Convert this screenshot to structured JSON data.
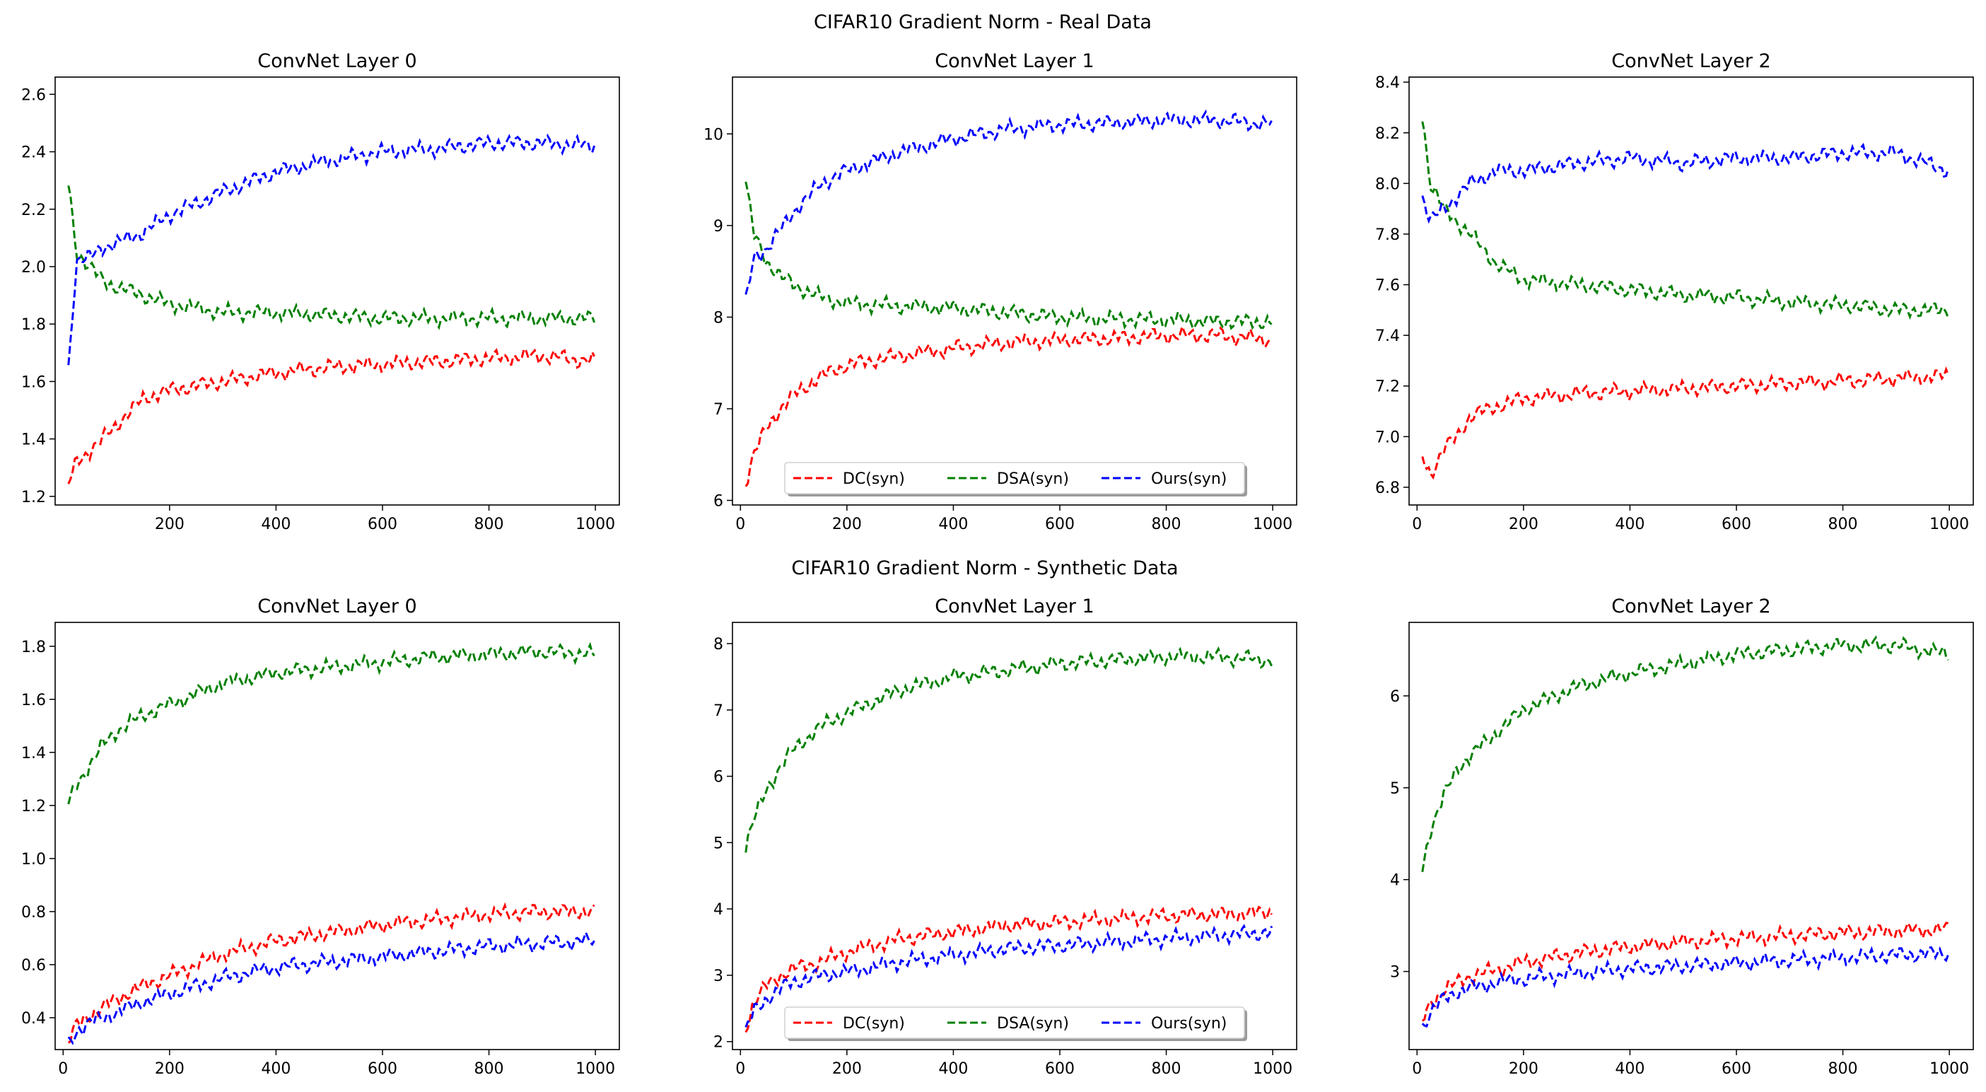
{
  "figure": {
    "real_title": "CIFAR10 Gradient Norm - Real Data",
    "syn_title": "CIFAR10 Gradient Norm - Synthetic Data"
  },
  "legend_labels": [
    "DC(syn)",
    "DSA(syn)",
    "Ours(syn)"
  ],
  "series_colors": {
    "DC(syn)": "#ff0000",
    "DSA(syn)": "#008000",
    "Ours(syn)": "#0000ff"
  },
  "chart_data": [
    {
      "type": "line",
      "group": "CIFAR10 Gradient Norm - Real Data",
      "title": "ConvNet Layer 0",
      "xlabel": "",
      "ylabel": "",
      "xlim": [
        -15,
        1045
      ],
      "ylim": [
        1.17,
        2.66
      ],
      "xticks": [
        200,
        400,
        600,
        800,
        1000
      ],
      "yticks": [
        1.2,
        1.4,
        1.6,
        1.8,
        2.0,
        2.2,
        2.4,
        2.6
      ],
      "ytick_labels": [
        "1.2",
        "1.4",
        "1.6",
        "1.8",
        "2.0",
        "2.2",
        "2.4",
        "2.6"
      ],
      "x": [
        10,
        25,
        50,
        75,
        100,
        150,
        200,
        300,
        400,
        500,
        600,
        700,
        800,
        900,
        1000
      ],
      "series": [
        {
          "name": "DC(syn)",
          "values": [
            1.24,
            1.32,
            1.36,
            1.4,
            1.45,
            1.54,
            1.57,
            1.6,
            1.63,
            1.65,
            1.66,
            1.67,
            1.68,
            1.69,
            1.67
          ]
        },
        {
          "name": "DSA(syn)",
          "values": [
            2.29,
            2.05,
            2.0,
            1.95,
            1.93,
            1.9,
            1.87,
            1.84,
            1.84,
            1.83,
            1.82,
            1.82,
            1.82,
            1.82,
            1.82
          ]
        },
        {
          "name": "Ours(syn)",
          "values": [
            1.65,
            2.02,
            2.03,
            2.07,
            2.08,
            2.12,
            2.18,
            2.26,
            2.33,
            2.37,
            2.4,
            2.41,
            2.43,
            2.43,
            2.42
          ]
        }
      ],
      "legend": false
    },
    {
      "type": "line",
      "group": "CIFAR10 Gradient Norm - Real Data",
      "title": "ConvNet Layer 1",
      "xlabel": "",
      "ylabel": "",
      "xlim": [
        -15,
        1045
      ],
      "ylim": [
        5.95,
        10.62
      ],
      "xticks": [
        0,
        200,
        400,
        600,
        800,
        1000
      ],
      "yticks": [
        6,
        7,
        8,
        9,
        10
      ],
      "ytick_labels": [
        "6",
        "7",
        "8",
        "9",
        "10"
      ],
      "x": [
        10,
        25,
        50,
        75,
        100,
        150,
        200,
        300,
        400,
        500,
        600,
        700,
        800,
        900,
        1000
      ],
      "series": [
        {
          "name": "DC(syn)",
          "values": [
            6.2,
            6.5,
            6.8,
            7.0,
            7.15,
            7.35,
            7.48,
            7.58,
            7.66,
            7.72,
            7.75,
            7.77,
            7.8,
            7.8,
            7.75
          ]
        },
        {
          "name": "DSA(syn)",
          "values": [
            9.5,
            8.9,
            8.6,
            8.45,
            8.35,
            8.22,
            8.15,
            8.12,
            8.1,
            8.05,
            8.0,
            7.98,
            7.97,
            7.95,
            7.95
          ]
        },
        {
          "name": "Ours(syn)",
          "values": [
            8.15,
            8.65,
            8.75,
            8.95,
            9.15,
            9.45,
            9.6,
            9.8,
            9.95,
            10.05,
            10.1,
            10.12,
            10.15,
            10.15,
            10.1
          ]
        }
      ],
      "legend": true,
      "legend_position": "lower center"
    },
    {
      "type": "line",
      "group": "CIFAR10 Gradient Norm - Real Data",
      "title": "ConvNet Layer 2",
      "xlabel": "",
      "ylabel": "",
      "xlim": [
        -15,
        1045
      ],
      "ylim": [
        6.73,
        8.42
      ],
      "xticks": [
        0,
        200,
        400,
        600,
        800,
        1000
      ],
      "yticks": [
        6.8,
        7.0,
        7.2,
        7.4,
        7.6,
        7.8,
        8.0,
        8.2,
        8.4
      ],
      "ytick_labels": [
        "6.8",
        "7.0",
        "7.2",
        "7.4",
        "7.6",
        "7.8",
        "8.0",
        "8.2",
        "8.4"
      ],
      "x": [
        10,
        25,
        50,
        75,
        100,
        150,
        200,
        300,
        400,
        500,
        600,
        700,
        800,
        900,
        1000
      ],
      "series": [
        {
          "name": "DC(syn)",
          "values": [
            6.92,
            6.85,
            6.95,
            7.0,
            7.08,
            7.12,
            7.15,
            7.17,
            7.18,
            7.19,
            7.2,
            7.21,
            7.22,
            7.23,
            7.24
          ]
        },
        {
          "name": "DSA(syn)",
          "values": [
            8.27,
            8.0,
            7.9,
            7.85,
            7.8,
            7.68,
            7.62,
            7.6,
            7.58,
            7.56,
            7.55,
            7.53,
            7.52,
            7.5,
            7.5
          ]
        },
        {
          "name": "Ours(syn)",
          "values": [
            7.95,
            7.85,
            7.9,
            7.95,
            8.0,
            8.05,
            8.05,
            8.08,
            8.1,
            8.08,
            8.1,
            8.1,
            8.12,
            8.12,
            8.05
          ]
        }
      ],
      "legend": false
    },
    {
      "type": "line",
      "group": "CIFAR10 Gradient Norm - Synthetic Data",
      "title": "ConvNet Layer 0",
      "xlabel": "",
      "ylabel": "",
      "xlim": [
        -15,
        1045
      ],
      "ylim": [
        0.28,
        1.89
      ],
      "xticks": [
        0,
        200,
        400,
        600,
        800,
        1000
      ],
      "yticks": [
        0.4,
        0.6,
        0.8,
        1.0,
        1.2,
        1.4,
        1.6,
        1.8
      ],
      "ytick_labels": [
        "0.4",
        "0.6",
        "0.8",
        "1.0",
        "1.2",
        "1.4",
        "1.6",
        "1.8"
      ],
      "x": [
        10,
        25,
        50,
        75,
        100,
        150,
        200,
        300,
        400,
        500,
        600,
        700,
        800,
        900,
        1000
      ],
      "series": [
        {
          "name": "DC(syn)",
          "values": [
            0.31,
            0.37,
            0.41,
            0.44,
            0.47,
            0.52,
            0.56,
            0.64,
            0.69,
            0.72,
            0.75,
            0.77,
            0.79,
            0.8,
            0.8
          ]
        },
        {
          "name": "DSA(syn)",
          "values": [
            1.2,
            1.28,
            1.35,
            1.43,
            1.48,
            1.54,
            1.58,
            1.66,
            1.7,
            1.72,
            1.74,
            1.76,
            1.77,
            1.78,
            1.77
          ]
        },
        {
          "name": "Ours(syn)",
          "values": [
            0.3,
            0.35,
            0.38,
            0.4,
            0.42,
            0.46,
            0.49,
            0.55,
            0.59,
            0.61,
            0.63,
            0.65,
            0.67,
            0.68,
            0.69
          ]
        }
      ],
      "legend": false
    },
    {
      "type": "line",
      "group": "CIFAR10 Gradient Norm - Synthetic Data",
      "title": "ConvNet Layer 1",
      "xlabel": "",
      "ylabel": "",
      "xlim": [
        -15,
        1045
      ],
      "ylim": [
        1.88,
        8.32
      ],
      "xticks": [
        0,
        200,
        400,
        600,
        800,
        1000
      ],
      "yticks": [
        2,
        3,
        4,
        5,
        6,
        7,
        8
      ],
      "ytick_labels": [
        "2",
        "3",
        "4",
        "5",
        "6",
        "7",
        "8"
      ],
      "x": [
        10,
        25,
        50,
        75,
        100,
        150,
        200,
        300,
        400,
        500,
        600,
        700,
        800,
        900,
        1000
      ],
      "series": [
        {
          "name": "DC(syn)",
          "values": [
            2.2,
            2.6,
            2.85,
            3.0,
            3.1,
            3.2,
            3.35,
            3.55,
            3.65,
            3.75,
            3.8,
            3.85,
            3.9,
            3.92,
            3.95
          ]
        },
        {
          "name": "DSA(syn)",
          "values": [
            4.95,
            5.35,
            5.8,
            6.15,
            6.4,
            6.75,
            6.95,
            7.3,
            7.5,
            7.6,
            7.7,
            7.75,
            7.8,
            7.8,
            7.75
          ]
        },
        {
          "name": "Ours(syn)",
          "values": [
            2.15,
            2.45,
            2.65,
            2.8,
            2.9,
            3.0,
            3.05,
            3.2,
            3.3,
            3.4,
            3.45,
            3.5,
            3.55,
            3.6,
            3.65
          ]
        }
      ],
      "legend": true,
      "legend_position": "lower center"
    },
    {
      "type": "line",
      "group": "CIFAR10 Gradient Norm - Synthetic Data",
      "title": "ConvNet Layer 2",
      "xlabel": "",
      "ylabel": "",
      "xlim": [
        -15,
        1045
      ],
      "ylim": [
        2.15,
        6.8
      ],
      "xticks": [
        0,
        200,
        400,
        600,
        800,
        1000
      ],
      "yticks": [
        3,
        4,
        5,
        6
      ],
      "ytick_labels": [
        "3",
        "4",
        "5",
        "6"
      ],
      "x": [
        10,
        25,
        50,
        75,
        100,
        150,
        200,
        300,
        400,
        500,
        600,
        700,
        800,
        900,
        1000
      ],
      "series": [
        {
          "name": "DC(syn)",
          "values": [
            2.45,
            2.65,
            2.8,
            2.88,
            2.95,
            3.02,
            3.1,
            3.2,
            3.27,
            3.32,
            3.36,
            3.39,
            3.42,
            3.44,
            3.46
          ]
        },
        {
          "name": "DSA(syn)",
          "values": [
            4.1,
            4.55,
            4.9,
            5.2,
            5.35,
            5.6,
            5.85,
            6.1,
            6.25,
            6.35,
            6.45,
            6.5,
            6.55,
            6.55,
            6.45
          ]
        },
        {
          "name": "Ours(syn)",
          "values": [
            2.4,
            2.55,
            2.7,
            2.78,
            2.82,
            2.88,
            2.92,
            2.98,
            3.03,
            3.06,
            3.09,
            3.12,
            3.15,
            3.18,
            3.2
          ]
        }
      ],
      "legend": false
    }
  ]
}
